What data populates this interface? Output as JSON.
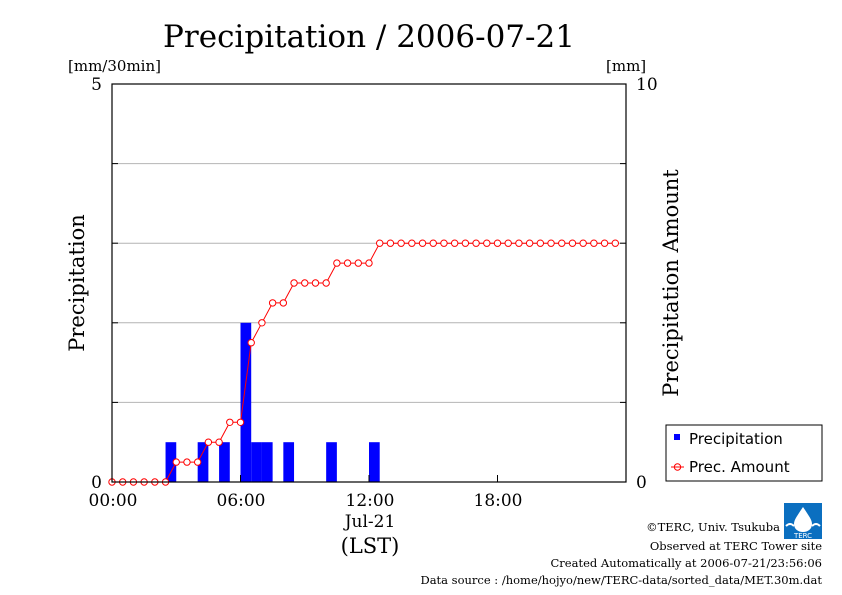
{
  "chart_data": {
    "type": "bar",
    "title": "Precipitation / 2006-07-21",
    "ylabel_left": "Precipitation",
    "ylabel_right": "Precipitation Amount",
    "unit_left": "[mm/30min]",
    "unit_right": "[mm]",
    "xlabel": "(LST)",
    "x_date_label": "Jul-21",
    "ylim_left": [
      0,
      5
    ],
    "ylim_right": [
      0,
      10
    ],
    "xlim_hours": [
      0,
      24
    ],
    "yticks_left": [
      "0",
      "5"
    ],
    "yticks_right": [
      "0",
      "10"
    ],
    "xticks": [
      "00:00",
      "06:00",
      "12:00",
      "18:00"
    ],
    "xtick_hours": [
      0,
      6,
      12,
      18
    ],
    "grid": "horizontal",
    "legend_position": "right",
    "series": [
      {
        "name": "Precipitation",
        "kind": "bar",
        "axis": "left",
        "color": "#0000ff",
        "interval_start_hours": [
          0,
          0.5,
          1,
          1.5,
          2,
          2.5,
          3,
          3.5,
          4,
          4.5,
          5,
          5.5,
          6,
          6.5,
          7,
          7.5,
          8,
          8.5,
          9,
          9.5,
          10,
          10.5,
          11,
          11.5,
          12,
          12.5,
          13,
          13.5,
          14,
          14.5,
          15,
          15.5,
          16,
          16.5,
          17,
          17.5,
          18,
          18.5,
          19,
          19.5,
          20,
          20.5,
          21,
          21.5,
          22,
          22.5,
          23,
          23.5
        ],
        "values": [
          0,
          0,
          0,
          0,
          0,
          0.5,
          0,
          0,
          0.5,
          0,
          0.5,
          0,
          2.0,
          0.5,
          0.5,
          0,
          0.5,
          0,
          0,
          0,
          0.5,
          0,
          0,
          0,
          0.5,
          0,
          0,
          0,
          0,
          0,
          0,
          0,
          0,
          0,
          0,
          0,
          0,
          0,
          0,
          0,
          0,
          0,
          0,
          0,
          0,
          0,
          0,
          0
        ]
      },
      {
        "name": "Prec. Amount",
        "kind": "line",
        "axis": "right",
        "color": "#ff0000",
        "x_hours": [
          0,
          0.5,
          1,
          1.5,
          2,
          2.5,
          3,
          3.5,
          4,
          4.5,
          5,
          5.5,
          6,
          6.5,
          7,
          7.5,
          8,
          8.5,
          9,
          9.5,
          10,
          10.5,
          11,
          11.5,
          12,
          12.5,
          13,
          13.5,
          14,
          14.5,
          15,
          15.5,
          16,
          16.5,
          17,
          17.5,
          18,
          18.5,
          19,
          19.5,
          20,
          20.5,
          21,
          21.5,
          22,
          22.5,
          23,
          23.5
        ],
        "values": [
          0,
          0,
          0,
          0,
          0,
          0,
          0.5,
          0.5,
          0.5,
          1.0,
          1.0,
          1.5,
          1.5,
          3.5,
          4.0,
          4.5,
          4.5,
          5.0,
          5.0,
          5.0,
          5.0,
          5.5,
          5.5,
          5.5,
          5.5,
          6.0,
          6.0,
          6.0,
          6.0,
          6.0,
          6.0,
          6.0,
          6.0,
          6.0,
          6.0,
          6.0,
          6.0,
          6.0,
          6.0,
          6.0,
          6.0,
          6.0,
          6.0,
          6.0,
          6.0,
          6.0,
          6.0,
          6.0
        ]
      }
    ]
  },
  "legend": {
    "items": [
      {
        "label": "Precipitation",
        "color": "#0000ff"
      },
      {
        "label": "Prec. Amount",
        "color": "#ff0000"
      }
    ]
  },
  "footer": {
    "logo_text": "TERC",
    "lines": [
      "©TERC, Univ. Tsukuba",
      "Observed at TERC Tower site",
      "Created Automatically at 2006-07-21/23:56:06",
      "Data source : /home/hojyo/new/TERC-data/sorted_data/MET.30m.dat"
    ]
  }
}
